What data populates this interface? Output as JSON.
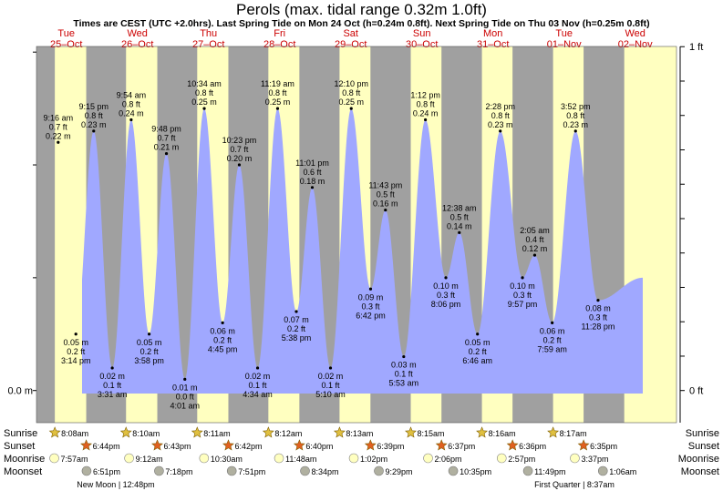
{
  "title": "Perols (max. tidal range 0.32m 1.0ft)",
  "subtitle": "Times are CEST (UTC +2.0hrs). Last Spring Tide on Mon 24 Oct (h=0.24m 0.8ft). Next Spring Tide on Thu 03 Nov (h=0.25m 0.8ft)",
  "colors": {
    "night": "#a0a0a0",
    "day": "#ffffc0",
    "water": "#a0a8ff",
    "date_text": "#cc0000",
    "sun": "#e0c040",
    "sunset": "#e06020",
    "moonrise": "#ffffc0",
    "moonset": "#b0b0a0"
  },
  "chart_data": {
    "type": "area",
    "title": "Perols (max. tidal range 0.32m 1.0ft)",
    "ylabel_left": "0.0 m",
    "ylabel_right_top": "1 ft",
    "ylabel_right_bottom": "0 ft",
    "ylim_m": [
      -0.0285,
      0.305
    ],
    "days": [
      {
        "dow": "Tue",
        "date": "25–Oct"
      },
      {
        "dow": "Wed",
        "date": "26–Oct"
      },
      {
        "dow": "Thu",
        "date": "27–Oct"
      },
      {
        "dow": "Fri",
        "date": "28–Oct"
      },
      {
        "dow": "Sat",
        "date": "29–Oct"
      },
      {
        "dow": "Sun",
        "date": "30–Oct"
      },
      {
        "dow": "Mon",
        "date": "31–Oct"
      },
      {
        "dow": "Tue",
        "date": "01–Nov"
      },
      {
        "dow": "Wed",
        "date": "02–Nov"
      }
    ],
    "start_level_m": 0.09,
    "end_level_m": 0.1,
    "extremes": [
      {
        "type": "high",
        "day": 0,
        "hour": 9.267,
        "h_m": 0.22,
        "time": "9:16 am",
        "ft": "0.7 ft",
        "m": "0.22 m"
      },
      {
        "type": "low",
        "day": 0,
        "hour": 15.233,
        "h_m": 0.05,
        "time": "3:14 pm",
        "ft": "0.2 ft",
        "m": "0.05 m"
      },
      {
        "type": "high",
        "day": 0,
        "hour": 21.25,
        "h_m": 0.23,
        "time": "9:15 pm",
        "ft": "0.8 ft",
        "m": "0.23 m"
      },
      {
        "type": "low",
        "day": 1,
        "hour": 3.517,
        "h_m": 0.02,
        "time": "3:31 am",
        "ft": "0.1 ft",
        "m": "0.02 m"
      },
      {
        "type": "high",
        "day": 1,
        "hour": 9.9,
        "h_m": 0.24,
        "time": "9:54 am",
        "ft": "0.8 ft",
        "m": "0.24 m"
      },
      {
        "type": "low",
        "day": 1,
        "hour": 15.967,
        "h_m": 0.05,
        "time": "3:58 pm",
        "ft": "0.2 ft",
        "m": "0.05 m"
      },
      {
        "type": "high",
        "day": 1,
        "hour": 21.8,
        "h_m": 0.21,
        "time": "9:48 pm",
        "ft": "0.7 ft",
        "m": "0.21 m"
      },
      {
        "type": "low",
        "day": 2,
        "hour": 4.017,
        "h_m": 0.01,
        "time": "4:01 am",
        "ft": "0.0 ft",
        "m": "0.01 m"
      },
      {
        "type": "high",
        "day": 2,
        "hour": 10.567,
        "h_m": 0.25,
        "time": "10:34 am",
        "ft": "0.8 ft",
        "m": "0.25 m"
      },
      {
        "type": "low",
        "day": 2,
        "hour": 16.75,
        "h_m": 0.06,
        "time": "4:45 pm",
        "ft": "0.2 ft",
        "m": "0.06 m"
      },
      {
        "type": "high",
        "day": 2,
        "hour": 22.383,
        "h_m": 0.2,
        "time": "10:23 pm",
        "ft": "0.7 ft",
        "m": "0.20 m"
      },
      {
        "type": "low",
        "day": 3,
        "hour": 4.567,
        "h_m": 0.02,
        "time": "4:34 am",
        "ft": "0.1 ft",
        "m": "0.02 m"
      },
      {
        "type": "high",
        "day": 3,
        "hour": 11.317,
        "h_m": 0.25,
        "time": "11:19 am",
        "ft": "0.8 ft",
        "m": "0.25 m"
      },
      {
        "type": "low",
        "day": 3,
        "hour": 17.633,
        "h_m": 0.07,
        "time": "5:38 pm",
        "ft": "0.2 ft",
        "m": "0.07 m"
      },
      {
        "type": "high",
        "day": 3,
        "hour": 23.017,
        "h_m": 0.18,
        "time": "11:01 pm",
        "ft": "0.6 ft",
        "m": "0.18 m"
      },
      {
        "type": "low",
        "day": 4,
        "hour": 5.167,
        "h_m": 0.02,
        "time": "5:10 am",
        "ft": "0.1 ft",
        "m": "0.02 m"
      },
      {
        "type": "high",
        "day": 4,
        "hour": 12.167,
        "h_m": 0.25,
        "time": "12:10 pm",
        "ft": "0.8 ft",
        "m": "0.25 m"
      },
      {
        "type": "low",
        "day": 4,
        "hour": 18.7,
        "h_m": 0.09,
        "time": "6:42 pm",
        "ft": "0.3 ft",
        "m": "0.09 m"
      },
      {
        "type": "high",
        "day": 4,
        "hour": 23.717,
        "h_m": 0.16,
        "time": "11:43 pm",
        "ft": "0.5 ft",
        "m": "0.16 m"
      },
      {
        "type": "low",
        "day": 5,
        "hour": 5.883,
        "h_m": 0.03,
        "time": "5:53 am",
        "ft": "0.1 ft",
        "m": "0.03 m"
      },
      {
        "type": "high",
        "day": 5,
        "hour": 13.2,
        "h_m": 0.24,
        "time": "1:12 pm",
        "ft": "0.8 ft",
        "m": "0.24 m"
      },
      {
        "type": "low",
        "day": 5,
        "hour": 20.1,
        "h_m": 0.1,
        "time": "8:06 pm",
        "ft": "0.3 ft",
        "m": "0.10 m"
      },
      {
        "type": "high",
        "day": 6,
        "hour": 0.633,
        "h_m": 0.14,
        "time": "12:38 am",
        "ft": "0.5 ft",
        "m": "0.14 m"
      },
      {
        "type": "low",
        "day": 6,
        "hour": 6.767,
        "h_m": 0.05,
        "time": "6:46 am",
        "ft": "0.2 ft",
        "m": "0.05 m"
      },
      {
        "type": "high",
        "day": 6,
        "hour": 14.467,
        "h_m": 0.23,
        "time": "2:28 pm",
        "ft": "0.8 ft",
        "m": "0.23 m"
      },
      {
        "type": "low",
        "day": 6,
        "hour": 21.95,
        "h_m": 0.1,
        "time": "9:57 pm",
        "ft": "0.3 ft",
        "m": "0.10 m"
      },
      {
        "type": "high",
        "day": 7,
        "hour": 2.083,
        "h_m": 0.12,
        "time": "2:05 am",
        "ft": "0.4 ft",
        "m": "0.12 m"
      },
      {
        "type": "low",
        "day": 7,
        "hour": 7.983,
        "h_m": 0.06,
        "time": "7:59 am",
        "ft": "0.2 ft",
        "m": "0.06 m"
      },
      {
        "type": "high",
        "day": 7,
        "hour": 15.867,
        "h_m": 0.23,
        "time": "3:52 pm",
        "ft": "0.8 ft",
        "m": "0.23 m"
      },
      {
        "type": "low",
        "day": 7,
        "hour": 23.467,
        "h_m": 0.08,
        "time": "11:28 pm",
        "ft": "0.3 ft",
        "m": "0.08 m"
      }
    ],
    "sun": [
      {
        "day": 0,
        "rise": "8:08am",
        "rise_h": 8.133,
        "set": "6:44pm",
        "set_h": 18.733
      },
      {
        "day": 1,
        "rise": "8:10am",
        "rise_h": 8.167,
        "set": "6:43pm",
        "set_h": 18.717
      },
      {
        "day": 2,
        "rise": "8:11am",
        "rise_h": 8.183,
        "set": "6:42pm",
        "set_h": 18.7
      },
      {
        "day": 3,
        "rise": "8:12am",
        "rise_h": 8.2,
        "set": "6:40pm",
        "set_h": 18.667
      },
      {
        "day": 4,
        "rise": "8:13am",
        "rise_h": 8.217,
        "set": "6:39pm",
        "set_h": 18.65
      },
      {
        "day": 5,
        "rise": "8:15am",
        "rise_h": 8.25,
        "set": "6:37pm",
        "set_h": 18.617
      },
      {
        "day": 6,
        "rise": "8:16am",
        "rise_h": 8.267,
        "set": "6:36pm",
        "set_h": 18.6
      },
      {
        "day": 7,
        "rise": "8:17am",
        "rise_h": 8.283,
        "set": "6:35pm",
        "set_h": 18.583
      }
    ],
    "moon": [
      {
        "day": 0,
        "rise": "7:57am",
        "rise_h": 7.95,
        "set": "6:51pm",
        "set_h": 18.85
      },
      {
        "day": 1,
        "rise": "9:12am",
        "rise_h": 9.2,
        "set": "7:18pm",
        "set_h": 19.3
      },
      {
        "day": 2,
        "rise": "10:30am",
        "rise_h": 10.5,
        "set": "7:51pm",
        "set_h": 19.85
      },
      {
        "day": 3,
        "rise": "11:48am",
        "rise_h": 11.8,
        "set": "8:34pm",
        "set_h": 20.567
      },
      {
        "day": 4,
        "rise": "1:02pm",
        "rise_h": 13.033,
        "set": "9:29pm",
        "set_h": 21.483
      },
      {
        "day": 5,
        "rise": "2:06pm",
        "rise_h": 14.1,
        "set": "10:35pm",
        "set_h": 22.583
      },
      {
        "day": 6,
        "rise": "2:57pm",
        "rise_h": 14.95,
        "set": "11:49pm",
        "set_h": 23.817
      },
      {
        "day": 7,
        "rise": "3:37pm",
        "rise_h": 15.617,
        "set": "",
        "set_h": null
      },
      {
        "day": 8,
        "rise": "",
        "rise_h": null,
        "set": "1:06am",
        "set_h": 1.1
      }
    ],
    "moon_phases": [
      {
        "label": "New Moon | 12:48pm"
      },
      {
        "label": "First Quarter | 8:37am"
      }
    ],
    "row_labels": {
      "sunrise": "Sunrise",
      "sunset": "Sunset",
      "moonrise": "Moonrise",
      "moonset": "Moonset"
    }
  }
}
